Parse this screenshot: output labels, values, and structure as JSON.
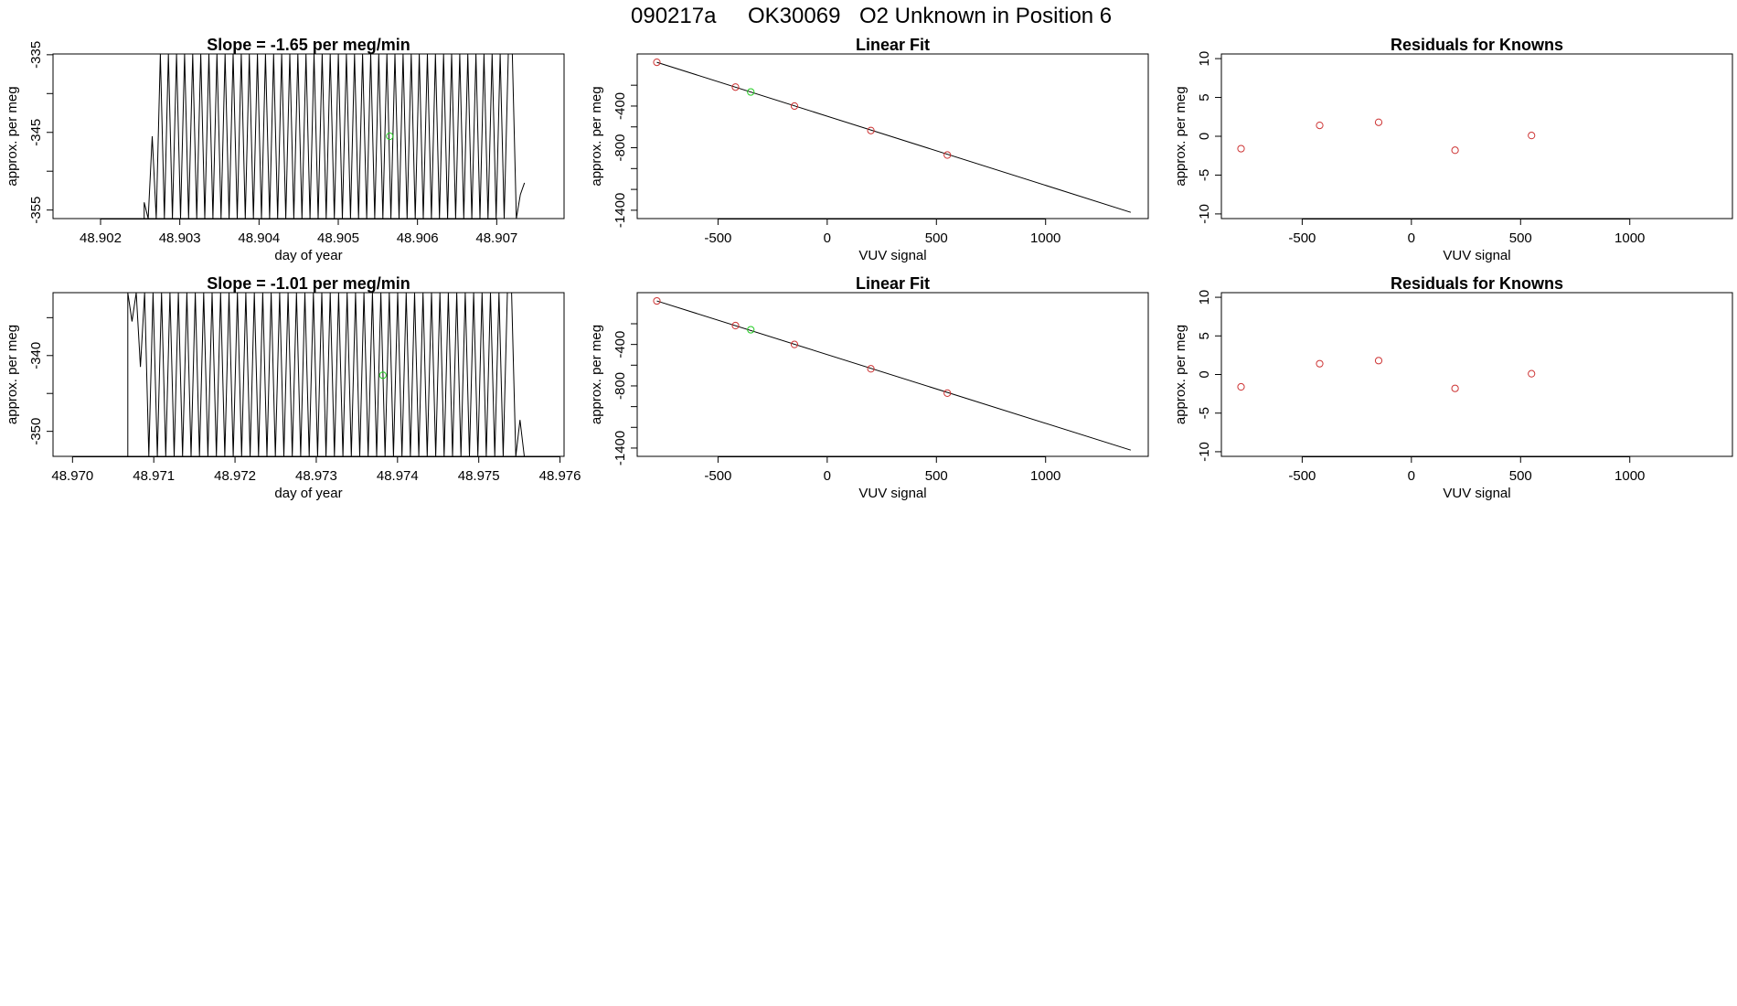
{
  "page_title": {
    "run_id": "090217a",
    "tank_id": "OK30069",
    "description": "O2 Unknown in Position  6"
  },
  "colors": {
    "line": "#000000",
    "known_point": "#cd3333",
    "unknown_point": "#22cc22",
    "fit_line": "#000000"
  },
  "chart_data": [
    {
      "id": "row1-timeseries",
      "type": "line",
      "title": "Slope =  -1.65  per meg/min",
      "xlabel": "day of year",
      "ylabel": "approx. per meg",
      "xlim": [
        48.9014,
        48.90785
      ],
      "ylim": [
        -356.1,
        -334.9
      ],
      "xticks": [
        48.902,
        48.903,
        48.904,
        48.905,
        48.906,
        48.907
      ],
      "xtick_labels": [
        "48.902",
        "48.903",
        "48.904",
        "48.905",
        "48.906",
        "48.907"
      ],
      "yticks": [
        -335,
        -340,
        -345,
        -350,
        -355
      ],
      "ytick_labels": [
        "-335",
        "",
        "-345",
        "",
        "-355"
      ],
      "series": [
        {
          "name": "approx. per meg",
          "x_start": 48.90255,
          "x_end": 48.90735,
          "points": 95,
          "low": -356.1,
          "high": -334.9,
          "start_values": [
            -354.0,
            -356.1,
            -345.5,
            -356.1
          ],
          "end_values": [
            -334.9,
            -356.1,
            -353.0,
            -351.5
          ]
        }
      ],
      "unknown_point": {
        "x": 48.90565,
        "y": -345.5
      }
    },
    {
      "id": "row1-linear-fit",
      "type": "scatter",
      "title": "Linear Fit",
      "xlabel": "VUV signal",
      "ylabel": "approx. per meg",
      "xlim": [
        -870,
        1470
      ],
      "ylim": [
        -1480,
        100
      ],
      "xticks": [
        -500,
        0,
        500,
        1000
      ],
      "xtick_labels": [
        "-500",
        "0",
        "500",
        "1000"
      ],
      "yticks": [
        -400,
        -800,
        -1400
      ],
      "ytick_labels": [
        "-400",
        "-800",
        "-1400"
      ],
      "yminor_ticks": [
        -200,
        -600,
        -1000,
        -1200
      ],
      "fit_line": {
        "x1": -780,
        "y1": 20,
        "x2": 1390,
        "y2": -1420
      },
      "knowns": [
        {
          "x": -780,
          "y": 20
        },
        {
          "x": -420,
          "y": -218
        },
        {
          "x": -150,
          "y": -400
        },
        {
          "x": 200,
          "y": -635
        },
        {
          "x": 550,
          "y": -870
        }
      ],
      "unknown_point": {
        "x": -350,
        "y": -265
      }
    },
    {
      "id": "row1-residuals",
      "type": "scatter",
      "title": "Residuals for Knowns",
      "xlabel": "VUV signal",
      "ylabel": "approx. per meg",
      "xlim": [
        -870,
        1470
      ],
      "ylim": [
        -10.6,
        10.6
      ],
      "xticks": [
        -500,
        0,
        500,
        1000
      ],
      "xtick_labels": [
        "-500",
        "0",
        "500",
        "1000"
      ],
      "yticks": [
        10,
        5,
        0,
        -5,
        -10
      ],
      "ytick_labels": [
        "10",
        "5",
        "0",
        "-5",
        "-10"
      ],
      "points": [
        {
          "x": -780,
          "y": -1.6
        },
        {
          "x": -420,
          "y": 1.4
        },
        {
          "x": -150,
          "y": 1.8
        },
        {
          "x": 200,
          "y": -1.8
        },
        {
          "x": 550,
          "y": 0.1
        }
      ]
    },
    {
      "id": "row2-timeseries",
      "type": "line",
      "title": "Slope =  -1.01  per meg/min",
      "xlabel": "day of year",
      "ylabel": "approx. per meg",
      "xlim": [
        48.96976,
        48.97605
      ],
      "ylim": [
        -353.3,
        -331.7
      ],
      "xticks": [
        48.97,
        48.971,
        48.972,
        48.973,
        48.974,
        48.975,
        48.976
      ],
      "xtick_labels": [
        "48.970",
        "48.971",
        "48.972",
        "48.973",
        "48.974",
        "48.975",
        "48.976"
      ],
      "yticks": [
        -335,
        -340,
        -345,
        -350
      ],
      "ytick_labels": [
        "",
        "-340",
        "",
        "-350"
      ],
      "series": [
        {
          "name": "approx. per meg",
          "x_start": 48.97068,
          "x_end": 48.97556,
          "points": 95,
          "low": -353.3,
          "high": -331.7,
          "start_values": [
            -331.7,
            -335.5,
            -331.7,
            -341.5,
            -331.7
          ],
          "end_values": [
            -331.7,
            -353.3,
            -348.5,
            -353.3
          ]
        }
      ],
      "unknown_point": {
        "x": 48.97382,
        "y": -342.6
      }
    },
    {
      "id": "row2-linear-fit",
      "type": "scatter",
      "title": "Linear Fit",
      "xlabel": "VUV signal",
      "ylabel": "approx. per meg",
      "xlim": [
        -870,
        1470
      ],
      "ylim": [
        -1480,
        100
      ],
      "xticks": [
        -500,
        0,
        500,
        1000
      ],
      "xtick_labels": [
        "-500",
        "0",
        "500",
        "1000"
      ],
      "yticks": [
        -400,
        -800,
        -1400
      ],
      "ytick_labels": [
        "-400",
        "-800",
        "-1400"
      ],
      "yminor_ticks": [
        -200,
        -600,
        -1000,
        -1200
      ],
      "fit_line": {
        "x1": -780,
        "y1": 20,
        "x2": 1390,
        "y2": -1420
      },
      "knowns": [
        {
          "x": -780,
          "y": 20
        },
        {
          "x": -420,
          "y": -218
        },
        {
          "x": -150,
          "y": -400
        },
        {
          "x": 200,
          "y": -635
        },
        {
          "x": 550,
          "y": -870
        }
      ],
      "unknown_point": {
        "x": -350,
        "y": -258
      }
    },
    {
      "id": "row2-residuals",
      "type": "scatter",
      "title": "Residuals for Knowns",
      "xlabel": "VUV signal",
      "ylabel": "approx. per meg",
      "xlim": [
        -870,
        1470
      ],
      "ylim": [
        -10.6,
        10.6
      ],
      "xticks": [
        -500,
        0,
        500,
        1000
      ],
      "xtick_labels": [
        "-500",
        "0",
        "500",
        "1000"
      ],
      "yticks": [
        10,
        5,
        0,
        -5,
        -10
      ],
      "ytick_labels": [
        "10",
        "5",
        "0",
        "-5",
        "-10"
      ],
      "points": [
        {
          "x": -780,
          "y": -1.6
        },
        {
          "x": -420,
          "y": 1.4
        },
        {
          "x": -150,
          "y": 1.8
        },
        {
          "x": 200,
          "y": -1.8
        },
        {
          "x": 550,
          "y": 0.1
        }
      ]
    }
  ]
}
